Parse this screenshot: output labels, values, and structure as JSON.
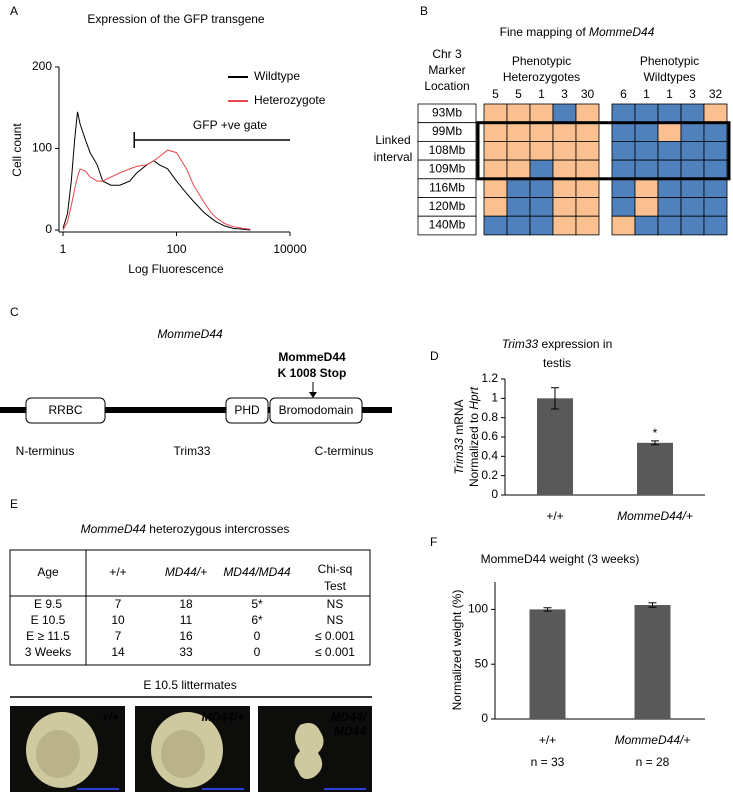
{
  "letters": [
    "A",
    "B",
    "C",
    "D",
    "E",
    "F"
  ],
  "chart_data": [
    {
      "type": "line",
      "title": "Expression of the GFP transgene",
      "xlabel": "Log Fluorescence",
      "ylabel": "Cell count",
      "xscale": "log",
      "xlim": [
        1,
        10000
      ],
      "xticks": [
        1,
        100,
        10000
      ],
      "ylim": [
        0,
        200
      ],
      "yticks": [
        0,
        100,
        200
      ],
      "x": [
        1,
        1.2,
        1.4,
        1.6,
        1.8,
        2,
        2.5,
        3,
        4,
        5,
        7,
        10,
        15,
        20,
        30,
        40,
        50,
        70,
        100,
        150,
        200,
        300,
        400,
        500,
        700,
        1000,
        1500,
        2000
      ],
      "series": [
        {
          "name": "Wildtype",
          "color": "#000000",
          "values": [
            2,
            20,
            60,
            110,
            145,
            130,
            110,
            95,
            80,
            60,
            55,
            55,
            60,
            70,
            80,
            85,
            80,
            75,
            60,
            45,
            35,
            22,
            15,
            10,
            5,
            2,
            1,
            0
          ]
        },
        {
          "name": "Heterozygote",
          "color": "#e8474e",
          "values": [
            0,
            10,
            30,
            50,
            65,
            75,
            72,
            65,
            60,
            60,
            65,
            70,
            75,
            78,
            80,
            85,
            90,
            98,
            95,
            75,
            55,
            35,
            22,
            15,
            8,
            4,
            2,
            1
          ]
        }
      ],
      "annotation": {
        "text": "GFP +ve gate",
        "x": [
          18,
          10000
        ]
      }
    },
    {
      "type": "bar",
      "title": [
        [
          {
            "text": "Trim33",
            "italic": true
          },
          {
            "text": " expression in"
          }
        ],
        [
          {
            "text": "testis"
          }
        ]
      ],
      "ylabel": [
        [
          {
            "text": "Trim33",
            "italic": true
          },
          {
            "text": " mRNA"
          }
        ],
        [
          {
            "text": "Normalized to "
          },
          {
            "text": "Hprt",
            "italic": true
          }
        ]
      ],
      "categories": [
        "+/+",
        "MommeD44/+"
      ],
      "category_italic": [
        false,
        true
      ],
      "values": [
        1,
        0.54
      ],
      "errors": [
        0.11,
        0.02
      ],
      "color": "#595959",
      "ylim": [
        0,
        1.2
      ],
      "yticks": [
        0,
        0.2,
        0.4,
        0.6,
        0.8,
        1,
        1.2
      ],
      "marker": {
        "text": "*",
        "category": 1
      }
    },
    {
      "type": "bar",
      "title": [
        [
          {
            "text": "MommeD44 weight (3 weeks)"
          }
        ]
      ],
      "ylabel": [
        [
          {
            "text": "Normalized weight (%)"
          }
        ]
      ],
      "categories": [
        "+/+",
        "MommeD44/+"
      ],
      "category_italic": [
        false,
        true
      ],
      "values": [
        100,
        104
      ],
      "errors": [
        1.5,
        2
      ],
      "color": "#595959",
      "ylim": [
        0,
        125
      ],
      "yticks": [
        0,
        50,
        100
      ],
      "notes": [
        "n = 33",
        "n = 28"
      ]
    }
  ],
  "mapping": {
    "title": [
      {
        "text": "Fine mapping of "
      },
      {
        "text": "MommeD44",
        "italic": true
      }
    ],
    "marker_header": [
      "Chr 3",
      "Marker",
      "Location"
    ],
    "groups": [
      {
        "name": [
          "Phenotypic",
          "Heterozygotes"
        ],
        "counts": [
          5,
          5,
          1,
          3,
          30
        ]
      },
      {
        "name": [
          "Phenotypic",
          "Wildtypes"
        ],
        "counts": [
          6,
          1,
          1,
          3,
          32
        ]
      }
    ],
    "markers": [
      "93Mb",
      "99Mb",
      "108Mb",
      "109Mb",
      "116Mb",
      "120Mb",
      "140Mb"
    ],
    "cells": [
      [
        "#fac090",
        "#fac090",
        "#fac090",
        "#4f81bd",
        "#fac090",
        "#4f81bd",
        "#4f81bd",
        "#4f81bd",
        "#4f81bd",
        "#fac090"
      ],
      [
        "#fac090",
        "#fac090",
        "#fac090",
        "#fac090",
        "#fac090",
        "#4f81bd",
        "#4f81bd",
        "#fac090",
        "#4f81bd",
        "#4f81bd"
      ],
      [
        "#fac090",
        "#fac090",
        "#fac090",
        "#fac090",
        "#fac090",
        "#4f81bd",
        "#4f81bd",
        "#4f81bd",
        "#4f81bd",
        "#4f81bd"
      ],
      [
        "#fac090",
        "#fac090",
        "#4f81bd",
        "#fac090",
        "#fac090",
        "#4f81bd",
        "#4f81bd",
        "#4f81bd",
        "#4f81bd",
        "#4f81bd"
      ],
      [
        "#fac090",
        "#4f81bd",
        "#4f81bd",
        "#fac090",
        "#fac090",
        "#4f81bd",
        "#fac090",
        "#4f81bd",
        "#4f81bd",
        "#4f81bd"
      ],
      [
        "#fac090",
        "#4f81bd",
        "#4f81bd",
        "#fac090",
        "#fac090",
        "#4f81bd",
        "#fac090",
        "#4f81bd",
        "#4f81bd",
        "#4f81bd"
      ],
      [
        "#4f81bd",
        "#4f81bd",
        "#4f81bd",
        "#fac090",
        "#fac090",
        "#fac090",
        "#4f81bd",
        "#4f81bd",
        "#4f81bd",
        "#4f81bd"
      ]
    ],
    "interval": {
      "label": [
        "Linked",
        "interval"
      ],
      "rows": [
        1,
        3
      ]
    }
  },
  "protein": {
    "title": "MommeD44",
    "mutation": [
      "MommeD44",
      "K 1008 Stop"
    ],
    "domains": [
      "RRBC",
      "PHD",
      "Bromodomain"
    ],
    "labels": [
      "N-terminus",
      "Trim33",
      "C-terminus"
    ]
  },
  "table": {
    "title": [
      {
        "text": "MommeD44",
        "italic": true
      },
      {
        "text": " heterozygous intercrosses"
      }
    ],
    "header": [
      [
        "Age"
      ],
      [
        "+/+"
      ],
      [
        "MD44/+"
      ],
      [
        "MD44/MD44"
      ],
      [
        "Chi-sq",
        "Test"
      ]
    ],
    "header_italic": [
      false,
      false,
      true,
      true,
      false
    ],
    "rows": [
      [
        "E 9.5",
        7,
        18,
        "5*",
        "NS"
      ],
      [
        "E 10.5",
        10,
        11,
        "6*",
        "NS"
      ],
      [
        "E ≥ 11.5",
        7,
        16,
        0,
        "≤ 0.001"
      ],
      [
        "3 Weeks",
        14,
        33,
        0,
        "≤ 0.001"
      ]
    ]
  },
  "embryos": {
    "title": "E 10.5 littermates",
    "labels": [
      [
        "+/+"
      ],
      [
        "MD44/+"
      ],
      [
        "MD44/",
        "MD44"
      ]
    ]
  }
}
